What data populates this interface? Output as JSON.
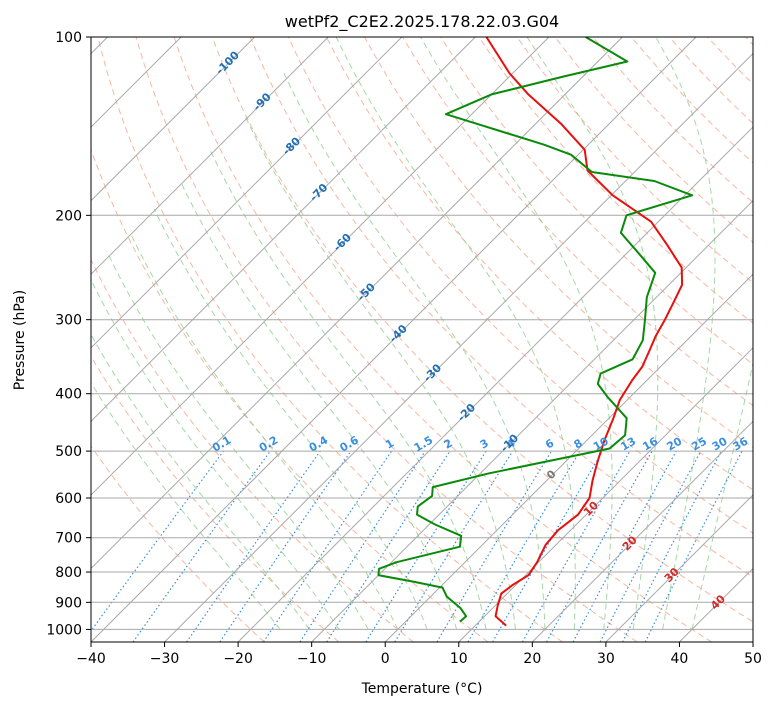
{
  "chart_data": {
    "type": "line",
    "title": "wetPf2_C2E2.2025.178.22.03.G04",
    "xlabel": "Temperature (°C)",
    "ylabel": "Pressure (hPa)",
    "xlim": [
      -40,
      50
    ],
    "ylim": [
      1050,
      100
    ],
    "y_scale": "log",
    "grid": true,
    "skew_t": true,
    "x_ticks": [
      "−40",
      "−30",
      "−20",
      "−10",
      "0",
      "10",
      "20",
      "30",
      "40",
      "50"
    ],
    "y_ticks": [
      "100",
      "200",
      "300",
      "400",
      "500",
      "600",
      "700",
      "800",
      "900",
      "1000"
    ],
    "colors": {
      "temperature": "#e8100c",
      "dewpoint": "#0a8a0a",
      "isotherm": "#a8a8a8",
      "dry_adiabat": "#f4a58a",
      "moist_adiabat": "#8fce8f",
      "mixing_ratio": "#3a8fe0",
      "isotherm_label_cold": "#1f6fb4",
      "isotherm_label_warm": "#d62728"
    },
    "isotherm_labels": [
      "-100",
      "-90",
      "-80",
      "-70",
      "-60",
      "-50",
      "-40",
      "-30",
      "-20",
      "-10",
      "0",
      "10",
      "20",
      "30",
      "40"
    ],
    "mixing_ratio_labels": [
      "0.1",
      "0.2",
      "0.4",
      "0.6",
      "1",
      "1.5",
      "2",
      "3",
      "4",
      "6",
      "8",
      "10",
      "13",
      "16",
      "20",
      "25",
      "30",
      "36"
    ],
    "series": [
      {
        "key": "temperature",
        "points": [
          [
            14.2,
            985
          ],
          [
            11.5,
            950
          ],
          [
            10.3,
            910
          ],
          [
            9.2,
            870
          ],
          [
            9.6,
            840
          ],
          [
            10.4,
            810
          ],
          [
            9.8,
            770
          ],
          [
            8.6,
            720
          ],
          [
            8.3,
            680
          ],
          [
            8.9,
            640
          ],
          [
            8.2,
            600
          ],
          [
            6.2,
            560
          ],
          [
            4.3,
            520
          ],
          [
            2.4,
            480
          ],
          [
            0.6,
            440
          ],
          [
            -1.0,
            410
          ],
          [
            -2.0,
            380
          ],
          [
            -2.5,
            360
          ],
          [
            -3.6,
            340
          ],
          [
            -4.8,
            320
          ],
          [
            -5.8,
            300
          ],
          [
            -7.0,
            280
          ],
          [
            -8.2,
            262
          ],
          [
            -10.6,
            245
          ],
          [
            -15.5,
            225
          ],
          [
            -21.0,
            205
          ],
          [
            -29.8,
            185
          ],
          [
            -36.6,
            168
          ],
          [
            -39.8,
            155
          ],
          [
            -46.6,
            140
          ],
          [
            -55.0,
            125
          ],
          [
            -60.5,
            115
          ],
          [
            -68.5,
            100
          ]
        ]
      },
      {
        "key": "dewpoint",
        "points": [
          [
            7.4,
            970
          ],
          [
            7.5,
            950
          ],
          [
            5.6,
            920
          ],
          [
            2.2,
            880
          ],
          [
            0.4,
            850
          ],
          [
            -4.5,
            830
          ],
          [
            -10.0,
            810
          ],
          [
            -10.8,
            790
          ],
          [
            -9.3,
            770
          ],
          [
            -2.8,
            725
          ],
          [
            -4.1,
            695
          ],
          [
            -9.2,
            665
          ],
          [
            -13.0,
            640
          ],
          [
            -14.0,
            620
          ],
          [
            -13.5,
            595
          ],
          [
            -14.6,
            575
          ],
          [
            -8.8,
            545
          ],
          [
            4.2,
            495
          ],
          [
            4.5,
            470
          ],
          [
            2.4,
            440
          ],
          [
            -3.1,
            405
          ],
          [
            -6.2,
            385
          ],
          [
            -7.2,
            370
          ],
          [
            -4.8,
            350
          ],
          [
            -6.0,
            325
          ],
          [
            -8.5,
            300
          ],
          [
            -11.3,
            275
          ],
          [
            -13.5,
            250
          ],
          [
            -17.5,
            235
          ],
          [
            -23.6,
            214
          ],
          [
            -25.2,
            200
          ],
          [
            -19.0,
            185
          ],
          [
            -26.1,
            175
          ],
          [
            -35.8,
            169
          ],
          [
            -41.0,
            158
          ],
          [
            -46.0,
            152
          ],
          [
            -55.0,
            143
          ],
          [
            -63.5,
            135
          ],
          [
            -60.0,
            125
          ],
          [
            -53.0,
            117
          ],
          [
            -46.0,
            110
          ],
          [
            -55.0,
            100
          ]
        ]
      }
    ]
  }
}
